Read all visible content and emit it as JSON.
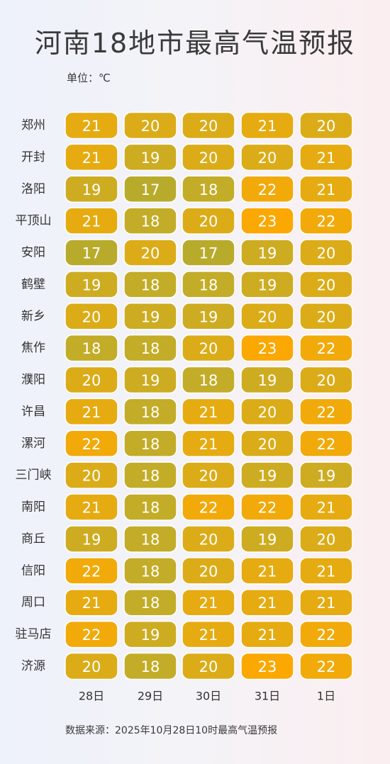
{
  "title": "河南18地市最高气温预报",
  "unit_label": "单位：℃",
  "source": "数据来源：2025年10月28日10时最高气温预报",
  "colors": {
    "17": "#b8ab2c",
    "18": "#c3ac27",
    "19": "#cdac22",
    "20": "#dbac18",
    "21": "#e6ab10",
    "22": "#f1aa0a",
    "23": "#fba803"
  },
  "chart_data": {
    "type": "heatmap",
    "columns": [
      "28日",
      "29日",
      "30日",
      "31日",
      "1日"
    ],
    "rows": [
      {
        "city": "郑州",
        "values": [
          21,
          20,
          20,
          21,
          20
        ]
      },
      {
        "city": "开封",
        "values": [
          21,
          19,
          20,
          20,
          21
        ]
      },
      {
        "city": "洛阳",
        "values": [
          19,
          17,
          18,
          22,
          21
        ]
      },
      {
        "city": "平顶山",
        "values": [
          21,
          18,
          20,
          23,
          22
        ]
      },
      {
        "city": "安阳",
        "values": [
          17,
          20,
          17,
          19,
          20
        ]
      },
      {
        "city": "鹤壁",
        "values": [
          19,
          18,
          18,
          19,
          20
        ]
      },
      {
        "city": "新乡",
        "values": [
          20,
          19,
          19,
          20,
          20
        ]
      },
      {
        "city": "焦作",
        "values": [
          18,
          18,
          20,
          23,
          22
        ]
      },
      {
        "city": "濮阳",
        "values": [
          20,
          19,
          18,
          19,
          20
        ]
      },
      {
        "city": "许昌",
        "values": [
          21,
          18,
          21,
          20,
          22
        ]
      },
      {
        "city": "漯河",
        "values": [
          22,
          18,
          21,
          20,
          22
        ]
      },
      {
        "city": "三门峡",
        "values": [
          20,
          18,
          20,
          19,
          19
        ]
      },
      {
        "city": "南阳",
        "values": [
          21,
          18,
          22,
          22,
          21
        ]
      },
      {
        "city": "商丘",
        "values": [
          19,
          18,
          20,
          19,
          20
        ]
      },
      {
        "city": "信阳",
        "values": [
          22,
          18,
          20,
          21,
          21
        ]
      },
      {
        "city": "周口",
        "values": [
          21,
          18,
          21,
          21,
          21
        ]
      },
      {
        "city": "驻马店",
        "values": [
          22,
          19,
          21,
          21,
          22
        ]
      },
      {
        "city": "济源",
        "values": [
          20,
          18,
          20,
          23,
          22
        ]
      }
    ]
  }
}
